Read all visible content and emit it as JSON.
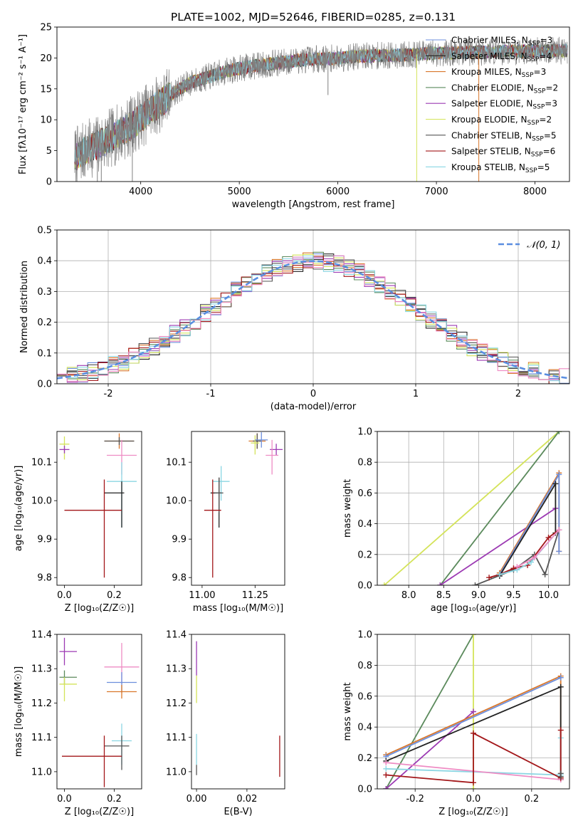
{
  "figure_title": "PLATE=1002, MJD=52646, FIBERID=0285, z=0.131",
  "colors": {
    "chabrier_miles": "#6d8fdc",
    "salpeter_miles": "#222222",
    "kroupa_miles": "#d9772b",
    "chabrier_elodie": "#5b8a5c",
    "salpeter_elodie": "#9c3ab3",
    "kroupa_elodie": "#d4e35a",
    "chabrier_stelib": "#555555",
    "salpeter_stelib": "#a3171a",
    "kroupa_stelib": "#8bd6e3",
    "extra_pink": "#ee8cc4",
    "normal_curve": "#5a8ee0"
  },
  "legend": [
    {
      "name": "Chabrier MILES, N",
      "sub": "SSP",
      "suffix": "=3",
      "color": "chabrier_miles"
    },
    {
      "name": "Salpeter MILES, N",
      "sub": "SSP",
      "suffix": "=4",
      "color": "salpeter_miles"
    },
    {
      "name": "Kroupa MILES, N",
      "sub": "SSP",
      "suffix": "=3",
      "color": "kroupa_miles"
    },
    {
      "name": "Chabrier ELODIE, N",
      "sub": "SSP",
      "suffix": "=2",
      "color": "chabrier_elodie"
    },
    {
      "name": "Salpeter ELODIE, N",
      "sub": "SSP",
      "suffix": "=3",
      "color": "salpeter_elodie"
    },
    {
      "name": "Kroupa ELODIE, N",
      "sub": "SSP",
      "suffix": "=2",
      "color": "kroupa_elodie"
    },
    {
      "name": "Chabrier STELIB, N",
      "sub": "SSP",
      "suffix": "=5",
      "color": "chabrier_stelib"
    },
    {
      "name": "Salpeter STELIB, N",
      "sub": "SSP",
      "suffix": "=6",
      "color": "salpeter_stelib"
    },
    {
      "name": "Kroupa STELIB, N",
      "sub": "SSP",
      "suffix": "=5",
      "color": "kroupa_stelib"
    }
  ],
  "chart_data": [
    {
      "id": "spectrum",
      "type": "line",
      "xlabel": "wavelength [Angstrom, rest frame]",
      "ylabel": "Flux [f",
      "ylabel_full": "Flux [fλ10⁻¹⁷ erg cm⁻² s⁻¹ A⁻¹]",
      "xlim": [
        3150,
        8350
      ],
      "ylim": [
        0,
        25
      ],
      "xticks": [
        4000,
        5000,
        6000,
        7000,
        8000
      ],
      "yticks": [
        0,
        5,
        10,
        15,
        20,
        25
      ],
      "x_range": [
        3330,
        8330
      ],
      "continuum": [
        [
          3330,
          4.0
        ],
        [
          3500,
          5.5
        ],
        [
          3700,
          7.0
        ],
        [
          3900,
          9.0
        ],
        [
          4100,
          11.5
        ],
        [
          4300,
          14.0
        ],
        [
          4500,
          16.0
        ],
        [
          4700,
          17.0
        ],
        [
          4900,
          18.0
        ],
        [
          5100,
          18.6
        ],
        [
          5300,
          19.0
        ],
        [
          5500,
          19.4
        ],
        [
          5700,
          19.8
        ],
        [
          5900,
          19.9
        ],
        [
          6100,
          20.1
        ],
        [
          6300,
          20.3
        ],
        [
          6500,
          20.4
        ],
        [
          6700,
          20.5
        ],
        [
          6900,
          20.7
        ],
        [
          7100,
          20.8
        ],
        [
          7300,
          20.9
        ],
        [
          7500,
          21.0
        ],
        [
          8330,
          21.2
        ]
      ],
      "grid": false
    },
    {
      "id": "residuals",
      "type": "histogram",
      "xlabel": "(data-model)/error",
      "ylabel": "Normed distribution",
      "xlim": [
        -2.5,
        2.5
      ],
      "ylim": [
        0,
        0.5
      ],
      "xticks": [
        -2,
        -1,
        0,
        1,
        2
      ],
      "yticks": [
        0.0,
        0.1,
        0.2,
        0.3,
        0.4,
        0.5
      ],
      "bin_width": 0.1,
      "legend_label": "𝒩(0, 1)",
      "grid": true
    },
    {
      "id": "age_vs_Z",
      "type": "scatter_errorbar",
      "xlabel": "Z [log₁₀(Z/Z☉)]",
      "ylabel": "age  [log₁₀(age/yr)]",
      "xlim": [
        -0.03,
        0.31
      ],
      "ylim": [
        9.78,
        10.18
      ],
      "xticks": [
        0.0,
        0.2
      ],
      "yticks": [
        9.8,
        9.9,
        10.0,
        10.1
      ],
      "points": [
        {
          "series": "kroupa_elodie",
          "x": 0.0,
          "xerr": [
            0.02,
            0.02
          ],
          "y": 10.147,
          "yerr": [
            0.04,
            0.02
          ]
        },
        {
          "series": "salpeter_elodie",
          "x": 0.0,
          "xerr": [
            0.02,
            0.02
          ],
          "y": 10.133,
          "yerr": [
            0.01,
            0.01
          ]
        },
        {
          "series": "kroupa_miles",
          "x": 0.22,
          "xerr": [
            0.06,
            0.06
          ],
          "y": 10.155,
          "yerr": [
            0.02,
            0.02
          ]
        },
        {
          "series": "chabrier_stelib",
          "x": 0.22,
          "xerr": [
            0.06,
            0.06
          ],
          "y": 10.155,
          "yerr": [
            0.01,
            0.01
          ]
        },
        {
          "series": "extra_pink",
          "x": 0.23,
          "xerr": [
            0.06,
            0.06
          ],
          "y": 10.118,
          "yerr": [
            0.05,
            0.04
          ]
        },
        {
          "series": "kroupa_stelib",
          "x": 0.23,
          "xerr": [
            0.06,
            0.06
          ],
          "y": 10.05,
          "yerr": [
            0.12,
            0.05
          ]
        },
        {
          "series": "salpeter_miles",
          "x": 0.23,
          "xerr": [
            0.07,
            0.01
          ],
          "y": 10.02,
          "yerr": [
            0.09,
            0.03
          ]
        },
        {
          "series": "salpeter_stelib",
          "x": 0.16,
          "xerr": [
            0.16,
            0.07
          ],
          "y": 9.975,
          "yerr": [
            0.175,
            0.08
          ]
        }
      ]
    },
    {
      "id": "age_vs_mass",
      "type": "scatter_errorbar",
      "xlabel": "mass [log₁₀(M/M☉)]",
      "ylabel": "",
      "xlim": [
        10.95,
        11.39
      ],
      "ylim": [
        9.78,
        10.18
      ],
      "xticks": [
        11.0,
        11.25
      ],
      "yticks": [
        9.8,
        9.9,
        10.0,
        10.1
      ],
      "points": [
        {
          "series": "kroupa_miles",
          "x": 11.26,
          "xerr": [
            0.04,
            0.04
          ],
          "y": 10.155,
          "yerr": [
            0.02,
            0.02
          ]
        },
        {
          "series": "chabrier_stelib",
          "x": 11.26,
          "xerr": [
            0.02,
            0.02
          ],
          "y": 10.155,
          "yerr": [
            0.02,
            0.02
          ]
        },
        {
          "series": "kroupa_elodie",
          "x": 11.25,
          "xerr": [
            0.02,
            0.02
          ],
          "y": 10.15,
          "yerr": [
            0.03,
            0.02
          ]
        },
        {
          "series": "chabrier_miles",
          "x": 11.28,
          "xerr": [
            0.03,
            0.03
          ],
          "y": 10.158,
          "yerr": [
            0.02,
            0.02
          ]
        },
        {
          "series": "salpeter_elodie",
          "x": 11.35,
          "xerr": [
            0.03,
            0.03
          ],
          "y": 10.133,
          "yerr": [
            0.015,
            0.015
          ]
        },
        {
          "series": "extra_pink",
          "x": 11.33,
          "xerr": [
            0.03,
            0.03
          ],
          "y": 10.118,
          "yerr": [
            0.05,
            0.04
          ]
        },
        {
          "series": "kroupa_stelib",
          "x": 11.09,
          "xerr": [
            0.04,
            0.04
          ],
          "y": 10.05,
          "yerr": [
            0.05,
            0.04
          ]
        },
        {
          "series": "salpeter_miles",
          "x": 11.08,
          "xerr": [
            0.04,
            0.01
          ],
          "y": 10.02,
          "yerr": [
            0.09,
            0.04
          ]
        },
        {
          "series": "chabrier_stelib",
          "x": 11.08,
          "xerr": [
            0.02,
            0.02
          ],
          "y": 10.02,
          "yerr": [
            0.05,
            0.04
          ]
        },
        {
          "series": "salpeter_stelib",
          "x": 11.05,
          "xerr": [
            0.04,
            0.04
          ],
          "y": 9.975,
          "yerr": [
            0.175,
            0.08
          ]
        }
      ]
    },
    {
      "id": "weight_vs_age",
      "type": "line",
      "xlabel": "age  [log₁₀(age/yr)]",
      "ylabel": "mass weight",
      "xlim": [
        7.55,
        10.3
      ],
      "ylim": [
        0,
        1
      ],
      "xticks": [
        8.0,
        8.5,
        9.0,
        9.5,
        10.0
      ],
      "yticks": [
        0.0,
        0.2,
        0.4,
        0.6,
        0.8,
        1.0
      ],
      "series": [
        {
          "name": "kroupa_elodie",
          "x": [
            7.65,
            10.15
          ],
          "y": [
            0.0,
            1.0
          ]
        },
        {
          "name": "chabrier_elodie",
          "x": [
            8.45,
            10.15
          ],
          "y": [
            0.0,
            1.0
          ]
        },
        {
          "name": "salpeter_elodie",
          "x": [
            8.45,
            10.1
          ],
          "y": [
            0.0,
            0.5
          ]
        },
        {
          "name": "kroupa_miles",
          "x": [
            9.3,
            10.15,
            10.15
          ],
          "y": [
            0.08,
            0.73,
            0.22
          ]
        },
        {
          "name": "chabrier_miles",
          "x": [
            9.3,
            10.15,
            10.15
          ],
          "y": [
            0.07,
            0.72,
            0.22
          ]
        },
        {
          "name": "salpeter_miles",
          "x": [
            9.3,
            10.1,
            10.1
          ],
          "y": [
            0.06,
            0.66,
            0.34
          ]
        },
        {
          "name": "chabrier_stelib",
          "x": [
            8.95,
            9.5,
            9.8,
            9.95,
            10.15
          ],
          "y": [
            0.0,
            0.1,
            0.2,
            0.07,
            0.36
          ]
        },
        {
          "name": "salpeter_stelib",
          "x": [
            9.15,
            9.3,
            9.5,
            9.7,
            10.0,
            10.15
          ],
          "y": [
            0.05,
            0.07,
            0.11,
            0.13,
            0.31,
            0.36
          ]
        },
        {
          "name": "kroupa_stelib",
          "x": [
            9.3,
            9.55,
            9.75,
            10.15
          ],
          "y": [
            0.07,
            0.1,
            0.15,
            0.36
          ]
        },
        {
          "name": "extra_pink",
          "x": [
            9.55,
            9.8,
            10.15
          ],
          "y": [
            0.12,
            0.18,
            0.36
          ]
        }
      ]
    },
    {
      "id": "mass_vs_Z",
      "type": "scatter_errorbar",
      "xlabel": "Z [log₁₀(Z/Z☉)]",
      "ylabel": "mass [log₁₀(M/M☉)]",
      "xlim": [
        -0.03,
        0.31
      ],
      "ylim": [
        10.95,
        11.4
      ],
      "xticks": [
        0.0,
        0.2
      ],
      "yticks": [
        11.0,
        11.1,
        11.2,
        11.3,
        11.4
      ],
      "points": [
        {
          "series": "salpeter_elodie",
          "x": 0.0,
          "xerr": [
            0.02,
            0.05
          ],
          "y": 11.35,
          "yerr": [
            0.04,
            0.04
          ]
        },
        {
          "series": "chabrier_elodie",
          "x": 0.0,
          "xerr": [
            0.02,
            0.05
          ],
          "y": 11.275,
          "yerr": [
            0.02,
            0.02
          ]
        },
        {
          "series": "kroupa_elodie",
          "x": 0.0,
          "xerr": [
            0.02,
            0.05
          ],
          "y": 11.255,
          "yerr": [
            0.05,
            0.02
          ]
        },
        {
          "series": "extra_pink",
          "x": 0.23,
          "xerr": [
            0.07,
            0.07
          ],
          "y": 11.305,
          "yerr": [
            0.05,
            0.07
          ]
        },
        {
          "series": "chabrier_miles",
          "x": 0.23,
          "xerr": [
            0.06,
            0.06
          ],
          "y": 11.26,
          "yerr": [
            0.03,
            0.03
          ]
        },
        {
          "series": "kroupa_miles",
          "x": 0.23,
          "xerr": [
            0.06,
            0.06
          ],
          "y": 11.233,
          "yerr": [
            0.02,
            0.02
          ]
        },
        {
          "series": "kroupa_stelib",
          "x": 0.23,
          "xerr": [
            0.04,
            0.04
          ],
          "y": 11.09,
          "yerr": [
            0.07,
            0.05
          ]
        },
        {
          "series": "chabrier_stelib",
          "x": 0.23,
          "xerr": [
            0.07,
            0.03
          ],
          "y": 11.075,
          "yerr": [
            0.07,
            0.03
          ]
        },
        {
          "series": "salpeter_stelib",
          "x": 0.16,
          "xerr": [
            0.17,
            0.07
          ],
          "y": 11.045,
          "yerr": [
            0.09,
            0.06
          ]
        }
      ]
    },
    {
      "id": "mass_vs_ebv",
      "type": "scatter_errorbar",
      "xlabel": "E(B-V)",
      "ylabel": "",
      "xlim": [
        -0.002,
        0.035
      ],
      "ylim": [
        10.95,
        11.4
      ],
      "xticks": [
        0.0,
        0.02
      ],
      "yticks": [
        11.0,
        11.1,
        11.2,
        11.3,
        11.4
      ],
      "points": [
        {
          "series": "salpeter_elodie",
          "x": 0.0,
          "xerr": [
            0.0,
            0.0
          ],
          "y": 11.33,
          "yerr": [
            0.05,
            0.05
          ]
        },
        {
          "series": "kroupa_elodie",
          "x": 0.0,
          "xerr": [
            0.0,
            0.0
          ],
          "y": 11.24,
          "yerr": [
            0.04,
            0.04
          ]
        },
        {
          "series": "kroupa_stelib",
          "x": 0.0,
          "xerr": [
            0.0,
            0.0
          ],
          "y": 11.06,
          "yerr": [
            0.04,
            0.05
          ]
        },
        {
          "series": "chabrier_stelib",
          "x": 0.0,
          "xerr": [
            0.0,
            0.0
          ],
          "y": 11.01,
          "yerr": [
            0.02,
            0.01
          ]
        },
        {
          "series": "salpeter_stelib",
          "x": 0.033,
          "xerr": [
            0.0,
            0.0
          ],
          "y": 11.045,
          "yerr": [
            0.06,
            0.06
          ]
        }
      ]
    },
    {
      "id": "weight_vs_Z",
      "type": "line",
      "xlabel": "Z [log₁₀(Z/Z☉)]",
      "ylabel": "mass weight",
      "xlim": [
        -0.33,
        0.33
      ],
      "ylim": [
        0,
        1
      ],
      "xticks": [
        -0.2,
        0.0,
        0.2
      ],
      "yticks": [
        0.0,
        0.2,
        0.4,
        0.6,
        0.8,
        1.0
      ],
      "series": [
        {
          "name": "chabrier_elodie",
          "x": [
            -0.3,
            0.0
          ],
          "y": [
            0.0,
            1.0
          ]
        },
        {
          "name": "kroupa_elodie",
          "x": [
            0.0,
            0.0
          ],
          "y": [
            1.0,
            0.0
          ]
        },
        {
          "name": "salpeter_elodie",
          "x": [
            -0.3,
            0.0
          ],
          "y": [
            0.0,
            0.5
          ]
        },
        {
          "name": "kroupa_miles",
          "x": [
            -0.3,
            0.3,
            0.3
          ],
          "y": [
            0.22,
            0.73,
            0.07
          ]
        },
        {
          "name": "chabrier_miles",
          "x": [
            -0.3,
            0.3
          ],
          "y": [
            0.21,
            0.72
          ]
        },
        {
          "name": "salpeter_miles",
          "x": [
            -0.3,
            0.3,
            0.3
          ],
          "y": [
            0.18,
            0.66,
            0.06
          ]
        },
        {
          "name": "kroupa_stelib",
          "x": [
            -0.3,
            0.3,
            0.3
          ],
          "y": [
            0.13,
            0.09,
            0.33
          ]
        },
        {
          "name": "extra_pink",
          "x": [
            -0.3,
            0.3
          ],
          "y": [
            0.17,
            0.06
          ]
        },
        {
          "name": "salpeter_stelib",
          "x": [
            -0.3,
            0.0,
            0.0,
            0.3,
            0.3
          ],
          "y": [
            0.09,
            0.04,
            0.36,
            0.07,
            0.38
          ]
        },
        {
          "name": "chabrier_stelib",
          "x": [
            0.3,
            0.3
          ],
          "y": [
            0.08,
            0.1
          ]
        }
      ]
    }
  ]
}
